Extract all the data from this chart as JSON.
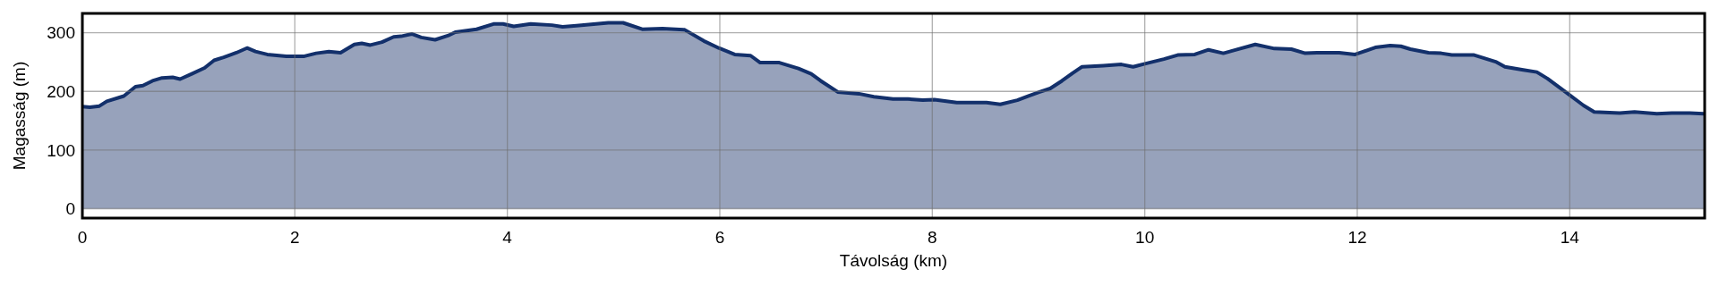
{
  "chart_data": {
    "type": "area",
    "xlabel": "Távolság (km)",
    "ylabel": "Magasság (m)",
    "xlim": [
      0,
      15.27
    ],
    "ylim": [
      -16,
      333
    ],
    "xticks": [
      0,
      2,
      4,
      6,
      8,
      10,
      12,
      14
    ],
    "yticks": [
      0,
      100,
      200,
      300
    ],
    "grid": true,
    "series": [
      {
        "color": "#13306b",
        "x": [
          0,
          0.07,
          0.16,
          0.23,
          0.39,
          0.5,
          0.57,
          0.66,
          0.75,
          0.85,
          0.92,
          1.03,
          1.15,
          1.24,
          1.33,
          1.45,
          1.55,
          1.63,
          1.74,
          1.92,
          2.09,
          2.2,
          2.32,
          2.43,
          2.56,
          2.63,
          2.71,
          2.82,
          2.93,
          3.0,
          3.1,
          3.19,
          3.32,
          3.44,
          3.51,
          3.71,
          3.87,
          3.96,
          4.06,
          4.22,
          4.42,
          4.52,
          4.65,
          4.95,
          5.09,
          5.27,
          5.46,
          5.67,
          5.85,
          5.99,
          6.14,
          6.29,
          6.38,
          6.56,
          6.74,
          6.86,
          6.95,
          7.11,
          7.31,
          7.45,
          7.63,
          7.77,
          7.91,
          8.02,
          8.23,
          8.51,
          8.64,
          8.8,
          8.9,
          9.01,
          9.11,
          9.22,
          9.32,
          9.41,
          9.61,
          9.78,
          9.89,
          10.0,
          10.18,
          10.31,
          10.47,
          10.6,
          10.74,
          10.86,
          11.04,
          11.22,
          11.38,
          11.51,
          11.62,
          11.83,
          11.98,
          12.17,
          12.31,
          12.41,
          12.5,
          12.67,
          12.79,
          12.89,
          13.1,
          13.31,
          13.39,
          13.55,
          13.69,
          13.79,
          13.96,
          14.13,
          14.23,
          14.47,
          14.61,
          14.82,
          14.96,
          15.13,
          15.26
        ],
        "values": [
          174,
          173,
          175,
          183,
          192,
          208,
          210,
          218,
          223,
          224,
          221,
          230,
          240,
          253,
          258,
          266,
          274,
          268,
          263,
          260,
          260,
          265,
          268,
          266,
          280,
          282,
          279,
          284,
          293,
          294,
          298,
          292,
          288,
          295,
          301,
          306,
          315,
          315,
          311,
          315,
          313,
          310,
          312,
          317,
          317,
          306,
          307,
          305,
          286,
          274,
          263,
          261,
          249,
          249,
          239,
          230,
          218,
          199,
          196,
          191,
          187,
          187,
          185,
          186,
          181,
          181,
          178,
          185,
          192,
          199,
          205,
          218,
          231,
          242,
          244,
          246,
          242,
          247,
          255,
          262,
          263,
          271,
          265,
          271,
          280,
          273,
          272,
          265,
          266,
          266,
          263,
          275,
          278,
          277,
          272,
          266,
          265,
          262,
          262,
          250,
          242,
          237,
          233,
          222,
          199,
          176,
          165,
          163,
          165,
          162,
          163,
          163,
          162
        ]
      }
    ]
  }
}
